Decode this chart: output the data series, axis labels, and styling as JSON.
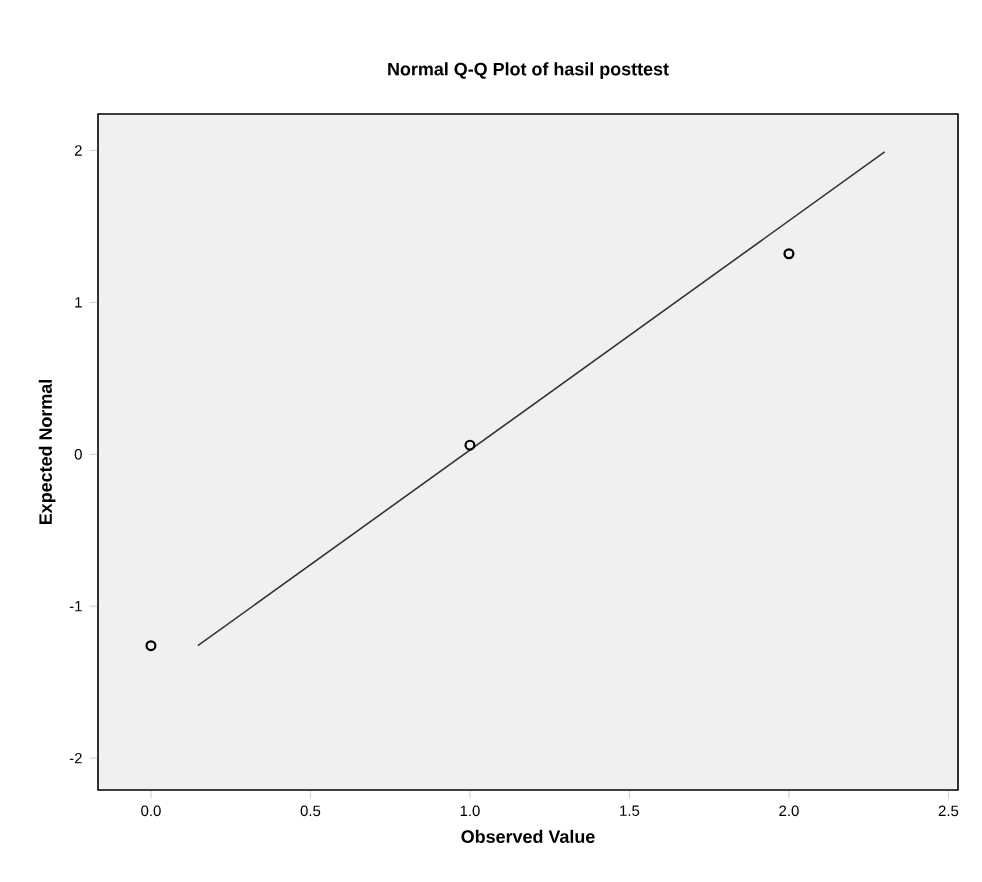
{
  "chart_data": {
    "type": "scatter",
    "title": "Normal Q-Q Plot of hasil posttest",
    "xlabel": "Observed Value",
    "ylabel": "Expected Normal",
    "xlim": [
      -0.166,
      2.53
    ],
    "ylim": [
      -2.21,
      2.24
    ],
    "xticks": [
      {
        "value": 0,
        "label": "0.0"
      },
      {
        "value": 0.5,
        "label": "0.5"
      },
      {
        "value": 1,
        "label": "1.0"
      },
      {
        "value": 1.5,
        "label": "1.5"
      },
      {
        "value": 2,
        "label": "2.0"
      },
      {
        "value": 2.5,
        "label": "2.5"
      }
    ],
    "yticks": [
      -2,
      -1,
      0,
      1,
      2
    ],
    "grid": false,
    "series": [
      {
        "marker": "circle",
        "color": "#000000",
        "x": [
          0,
          1,
          2
        ],
        "values": [
          -1.26,
          0.06,
          1.32
        ]
      },
      {
        "type": "line",
        "line_style": "solid",
        "color": "#333333",
        "x": [
          0.147,
          2.3
        ],
        "values": [
          -1.26,
          1.99
        ]
      }
    ]
  }
}
